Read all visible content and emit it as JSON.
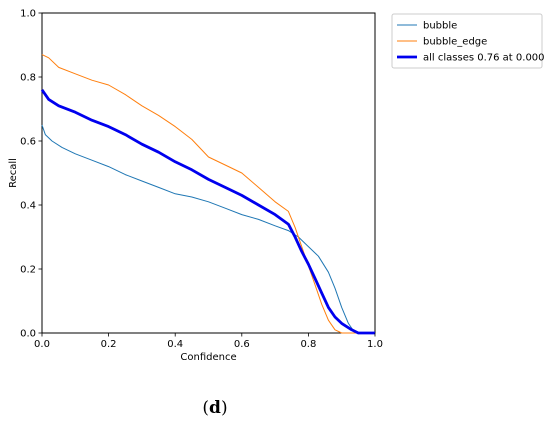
{
  "chart_data": {
    "type": "line",
    "xlabel": "Confidence",
    "ylabel": "Recall",
    "xlim": [
      0.0,
      1.0
    ],
    "ylim": [
      0.0,
      1.0
    ],
    "x_ticks": [
      "0.0",
      "0.2",
      "0.4",
      "0.6",
      "0.8",
      "1.0"
    ],
    "y_ticks": [
      "0.0",
      "0.2",
      "0.4",
      "0.6",
      "0.8",
      "1.0"
    ],
    "grid": false,
    "legend_position": "outside-top-right",
    "series": [
      {
        "name": "bubble",
        "color": "#1f77b4",
        "width": "thin",
        "points": [
          [
            0.0,
            0.65
          ],
          [
            0.01,
            0.62
          ],
          [
            0.03,
            0.6
          ],
          [
            0.06,
            0.58
          ],
          [
            0.1,
            0.56
          ],
          [
            0.15,
            0.54
          ],
          [
            0.2,
            0.52
          ],
          [
            0.25,
            0.495
          ],
          [
            0.3,
            0.475
          ],
          [
            0.35,
            0.455
          ],
          [
            0.4,
            0.435
          ],
          [
            0.45,
            0.425
          ],
          [
            0.5,
            0.41
          ],
          [
            0.55,
            0.39
          ],
          [
            0.6,
            0.37
          ],
          [
            0.65,
            0.355
          ],
          [
            0.7,
            0.335
          ],
          [
            0.74,
            0.32
          ],
          [
            0.77,
            0.3
          ],
          [
            0.8,
            0.27
          ],
          [
            0.83,
            0.24
          ],
          [
            0.86,
            0.19
          ],
          [
            0.88,
            0.14
          ],
          [
            0.9,
            0.08
          ],
          [
            0.92,
            0.03
          ],
          [
            0.94,
            0.0
          ],
          [
            1.0,
            0.0
          ]
        ]
      },
      {
        "name": "bubble_edge",
        "color": "#ff7f0e",
        "width": "thin",
        "points": [
          [
            0.0,
            0.87
          ],
          [
            0.02,
            0.86
          ],
          [
            0.05,
            0.83
          ],
          [
            0.1,
            0.81
          ],
          [
            0.15,
            0.79
          ],
          [
            0.2,
            0.775
          ],
          [
            0.25,
            0.745
          ],
          [
            0.3,
            0.71
          ],
          [
            0.35,
            0.68
          ],
          [
            0.4,
            0.645
          ],
          [
            0.45,
            0.605
          ],
          [
            0.5,
            0.55
          ],
          [
            0.55,
            0.525
          ],
          [
            0.6,
            0.5
          ],
          [
            0.65,
            0.455
          ],
          [
            0.7,
            0.41
          ],
          [
            0.74,
            0.38
          ],
          [
            0.76,
            0.33
          ],
          [
            0.78,
            0.27
          ],
          [
            0.8,
            0.21
          ],
          [
            0.82,
            0.15
          ],
          [
            0.84,
            0.09
          ],
          [
            0.86,
            0.04
          ],
          [
            0.88,
            0.01
          ],
          [
            0.9,
            0.0
          ],
          [
            1.0,
            0.0
          ]
        ]
      },
      {
        "name": "all classes 0.76 at 0.000",
        "color": "#0000ee",
        "width": "thick",
        "points": [
          [
            0.0,
            0.76
          ],
          [
            0.02,
            0.73
          ],
          [
            0.05,
            0.71
          ],
          [
            0.1,
            0.69
          ],
          [
            0.15,
            0.665
          ],
          [
            0.2,
            0.645
          ],
          [
            0.25,
            0.62
          ],
          [
            0.3,
            0.59
          ],
          [
            0.35,
            0.565
          ],
          [
            0.4,
            0.535
          ],
          [
            0.45,
            0.51
          ],
          [
            0.5,
            0.48
          ],
          [
            0.55,
            0.455
          ],
          [
            0.6,
            0.43
          ],
          [
            0.65,
            0.4
          ],
          [
            0.7,
            0.37
          ],
          [
            0.74,
            0.34
          ],
          [
            0.76,
            0.3
          ],
          [
            0.78,
            0.255
          ],
          [
            0.8,
            0.215
          ],
          [
            0.82,
            0.17
          ],
          [
            0.84,
            0.125
          ],
          [
            0.86,
            0.08
          ],
          [
            0.88,
            0.05
          ],
          [
            0.9,
            0.03
          ],
          [
            0.93,
            0.01
          ],
          [
            0.95,
            0.0
          ],
          [
            1.0,
            0.0
          ]
        ]
      }
    ]
  },
  "caption": {
    "open": "(",
    "letter": "d",
    "close": ")"
  }
}
